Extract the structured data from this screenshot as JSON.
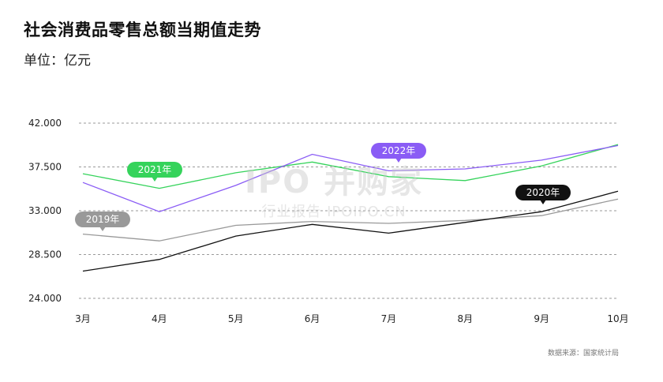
{
  "title": "社会消费品零售总额当期值走势",
  "subtitle": "单位：亿元",
  "source": "数据来源：国家统计局",
  "watermark": {
    "main": "IPO 并购家",
    "sub": "行业报告 IPOIPO.CN"
  },
  "chart_data": {
    "type": "line",
    "title": "社会消费品零售总额当期值走势",
    "ylabel": "单位：亿元",
    "categories": [
      "3月",
      "4月",
      "5月",
      "6月",
      "7月",
      "8月",
      "9月",
      "10月"
    ],
    "ylim": [
      24000,
      42000
    ],
    "yticks": [
      24000,
      28500,
      33000,
      37500,
      42000
    ],
    "ytick_labels": [
      "24.000",
      "28.500",
      "33.000",
      "37.500",
      "42.000"
    ],
    "grid": true,
    "series": [
      {
        "name": "2019年",
        "color": "#999999",
        "values": [
          30600,
          29900,
          31500,
          31900,
          31700,
          32000,
          32500,
          34200
        ]
      },
      {
        "name": "2020年",
        "color": "#111111",
        "values": [
          26800,
          28000,
          30400,
          31600,
          30700,
          31800,
          32900,
          35000
        ]
      },
      {
        "name": "2021年",
        "color": "#35d35b",
        "values": [
          36800,
          35300,
          36900,
          38000,
          36500,
          36100,
          37600,
          39800
        ]
      },
      {
        "name": "2022年",
        "color": "#8a5cf5",
        "values": [
          35900,
          32900,
          35600,
          38800,
          37100,
          37300,
          38200,
          39700
        ]
      }
    ],
    "labels": [
      {
        "series": 0,
        "text": "2019年",
        "color": "#999999"
      },
      {
        "series": 1,
        "text": "2020年",
        "color": "#111111"
      },
      {
        "series": 2,
        "text": "2021年",
        "color": "#35d35b"
      },
      {
        "series": 3,
        "text": "2022年",
        "color": "#8a5cf5"
      }
    ]
  }
}
